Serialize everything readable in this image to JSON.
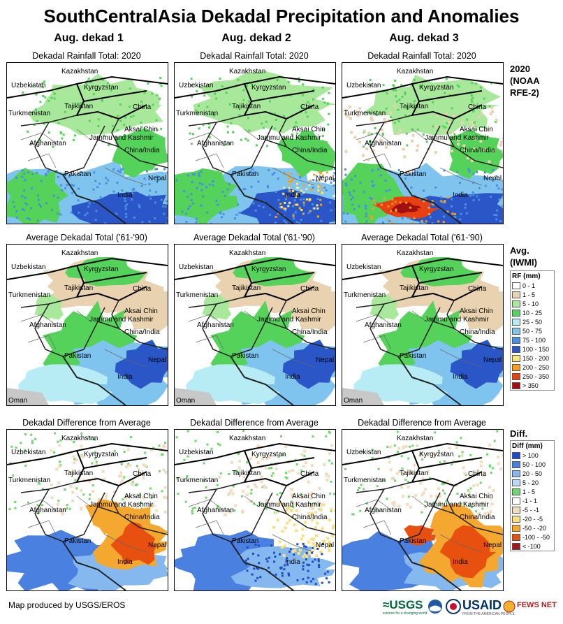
{
  "title": "SouthCentralAsia Dekadal Precipitation and Anomalies",
  "columns": [
    "Aug. dekad 1",
    "Aug. dekad 2",
    "Aug. dekad 3"
  ],
  "rows": [
    {
      "panel_title": "Dekadal Rainfall Total: 2020",
      "label_lines": [
        "2020",
        "(NOAA",
        "RFE-2)"
      ]
    },
    {
      "panel_title": "Average Dekadal Total ('61-'90)",
      "label_lines": [
        "Avg.",
        "(IWMI)"
      ]
    },
    {
      "panel_title": "Dekadal Difference from Average",
      "label_lines": [
        "Diff."
      ]
    }
  ],
  "map_labels": {
    "kazakhstan": "Kazakhstan",
    "uzbekistan": "Uzbekistan",
    "kyrgyzstan": "Kyrgyzstan",
    "tajikistan": "Tajikistan",
    "china": "China",
    "turkmenistan": "Turkmenistan",
    "aksai_chin": "Aksai Chin",
    "jammu_kashmir": "Jammu and Kashmir",
    "china_india": "China/India",
    "afghanistan": "Afghanistan",
    "pakistan": "Pakistan",
    "nepal": "Nepal",
    "india": "India",
    "oman": "Oman"
  },
  "legend_rf": {
    "title": "RF (mm)",
    "items": [
      {
        "label": "0 - 1",
        "color": "#ffffff"
      },
      {
        "label": "1 - 5",
        "color": "#e8d2b0"
      },
      {
        "label": "5 - 10",
        "color": "#a8e89a"
      },
      {
        "label": "10 - 25",
        "color": "#54d25a"
      },
      {
        "label": "25 - 50",
        "color": "#b8ecf4"
      },
      {
        "label": "50 - 75",
        "color": "#7ec4ee"
      },
      {
        "label": "75 - 100",
        "color": "#4a8fe0"
      },
      {
        "label": "100 - 150",
        "color": "#2a56c8"
      },
      {
        "label": "150 - 200",
        "color": "#f8e87a"
      },
      {
        "label": "200 - 250",
        "color": "#f5a020"
      },
      {
        "label": "250 - 350",
        "color": "#e84010"
      },
      {
        "label": "> 350",
        "color": "#a01010"
      }
    ]
  },
  "legend_diff": {
    "title": "Diff (mm)",
    "items": [
      {
        "label": "> 100",
        "color": "#1e4bc8"
      },
      {
        "label": "50 - 100",
        "color": "#4a80e0"
      },
      {
        "label": "20 - 50",
        "color": "#86b8f0"
      },
      {
        "label": "5 - 20",
        "color": "#b8dcf8"
      },
      {
        "label": "1 - 5",
        "color": "#6cd86a"
      },
      {
        "label": "-1 - 1",
        "color": "#ffffff"
      },
      {
        "label": "-5 - -1",
        "color": "#f2dcbc"
      },
      {
        "label": "-20 - -5",
        "color": "#f8e080"
      },
      {
        "label": "-50 - -20",
        "color": "#f5a830"
      },
      {
        "label": "-100 - -50",
        "color": "#e85010"
      },
      {
        "label": "< -100",
        "color": "#a01818"
      }
    ]
  },
  "credit": "Map produced by USGS/EROS",
  "logos": {
    "usgs": "≈USGS",
    "usgs_tagline": "science for a changing world",
    "usaid": "USAID",
    "usaid_tagline": "FROM THE AMERICAN PEOPLE",
    "fews": "FEWS NET"
  }
}
